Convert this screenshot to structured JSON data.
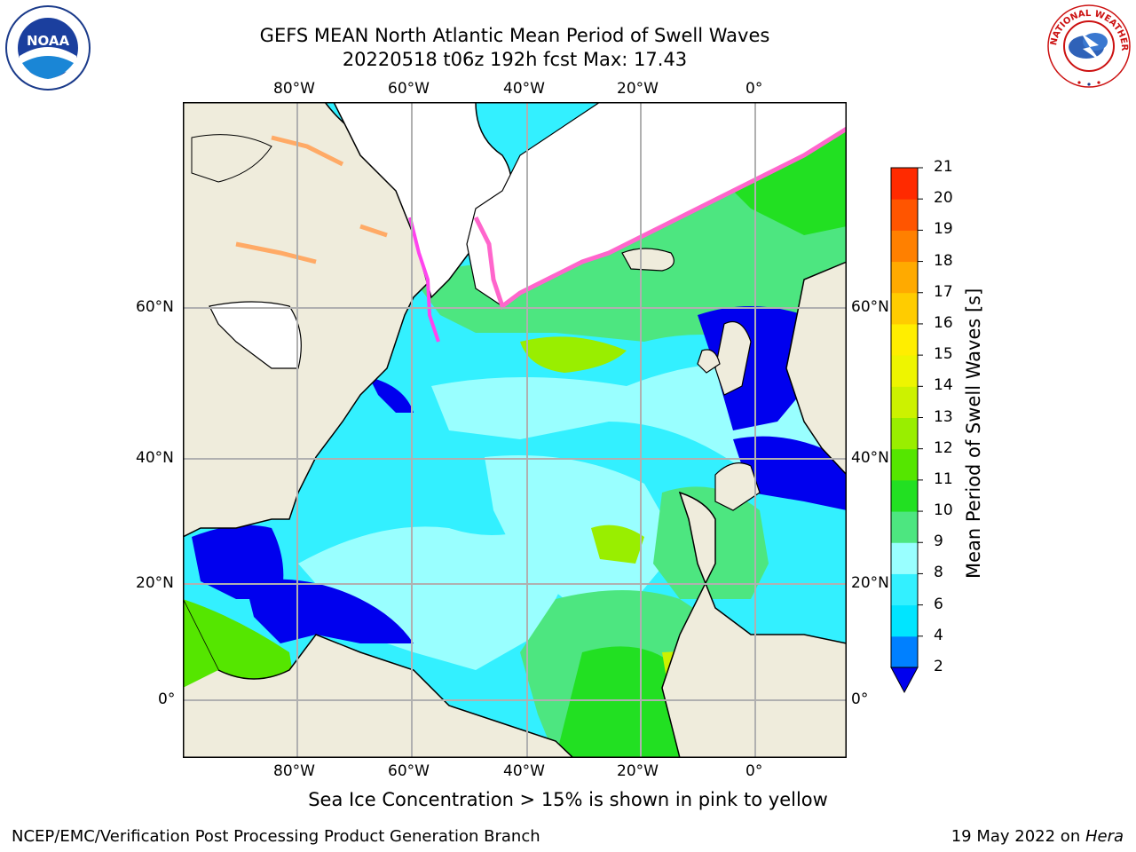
{
  "title_line1": "GEFS MEAN North Atlantic Mean Period of Swell Waves",
  "title_line2": "20220518 t06z 192h fcst   Max: 17.43",
  "logos": {
    "noara": "NOAA",
    "nws_text": "NATIONAL WEATHER SERVICE"
  },
  "map": {
    "lon_labels": [
      "80°W",
      "60°W",
      "40°W",
      "20°W",
      "0°"
    ],
    "lat_labels": [
      "60°N",
      "40°N",
      "20°N",
      "0°"
    ],
    "colors": {
      "land": "#efecdc",
      "ice_white": "#ffffff",
      "ice_pink": "#ff66cc",
      "ice_orange": "#ffaa66",
      "grid": "#b0b0b0"
    }
  },
  "colorbar": {
    "title": "Mean Period of Swell Waves [s]",
    "ticks": [
      "2",
      "4",
      "6",
      "8",
      "9",
      "10",
      "11",
      "12",
      "13",
      "14",
      "15",
      "16",
      "17",
      "18",
      "19",
      "20",
      "21"
    ],
    "colors": [
      "#0000ee",
      "#0080ff",
      "#00e5ff",
      "#33f0ff",
      "#99ffff",
      "#4de680",
      "#22e022",
      "#55e600",
      "#99ee00",
      "#ccf200",
      "#eef500",
      "#ffee00",
      "#ffcc00",
      "#ffaa00",
      "#ff8000",
      "#ff5500",
      "#ff2a00",
      "#ff0000"
    ]
  },
  "caption": "Sea Ice Concentration > 15% is shown in pink to yellow",
  "footer": {
    "left": "NCEP/EMC/Verification Post Processing Product Generation Branch",
    "date": "19 May 2022 on ",
    "machine": "Hera"
  }
}
